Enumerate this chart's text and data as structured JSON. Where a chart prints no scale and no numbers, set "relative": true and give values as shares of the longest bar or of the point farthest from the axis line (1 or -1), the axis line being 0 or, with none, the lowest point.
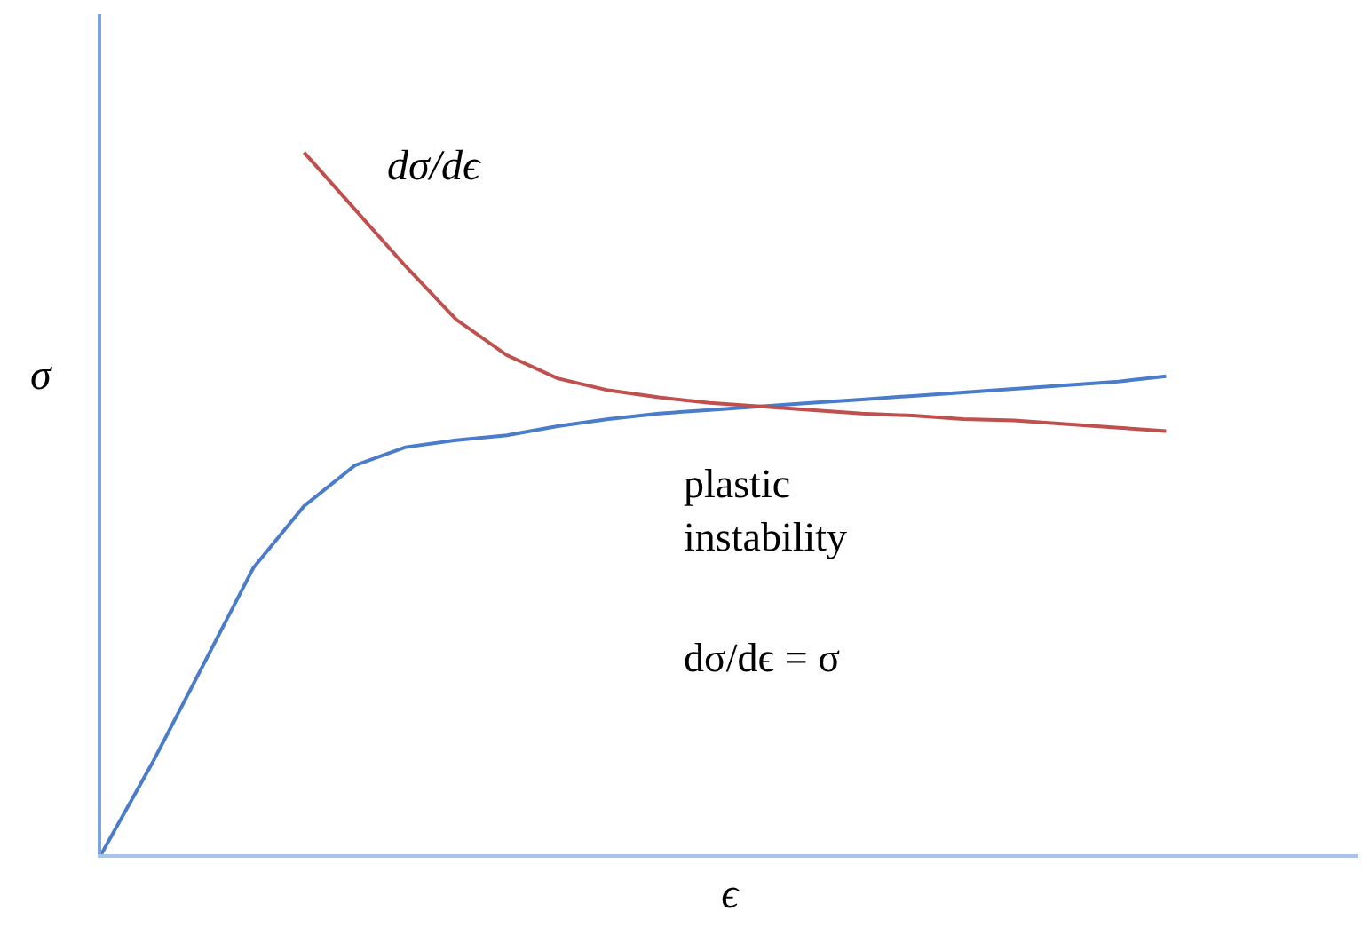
{
  "chart_data": {
    "type": "line",
    "relative": true,
    "ylabel": "σ",
    "xlabel": "ϵ",
    "legend": false,
    "marker": "none",
    "line_style": "solid",
    "categories": [
      null,
      null,
      null,
      null,
      null,
      null,
      null,
      null,
      null,
      null,
      null,
      null,
      null,
      null,
      null,
      null,
      null,
      null,
      null,
      null,
      null,
      null
    ],
    "annotations": [
      "plastic\ninstability",
      "dσ/dϵ = σ"
    ],
    "series": [
      {
        "color": "#4a7cc9",
        "values": [
          0,
          0.129,
          0.268,
          0.408,
          0.496,
          0.554,
          0.58,
          0.59,
          0.597,
          0.61,
          0.62,
          0.628,
          0.633,
          0.638,
          0.643,
          0.648,
          0.653,
          0.658,
          0.663,
          0.668,
          0.673,
          0.681
        ]
      },
      {
        "name": "dσ/dϵ",
        "color": "#c0504d",
        "values": [
          null,
          null,
          null,
          null,
          1,
          0.919,
          0.838,
          0.762,
          0.711,
          0.678,
          0.661,
          0.651,
          0.643,
          0.638,
          0.633,
          0.628,
          0.625,
          0.62,
          0.618,
          0.613,
          0.608,
          0.603
        ]
      }
    ]
  }
}
